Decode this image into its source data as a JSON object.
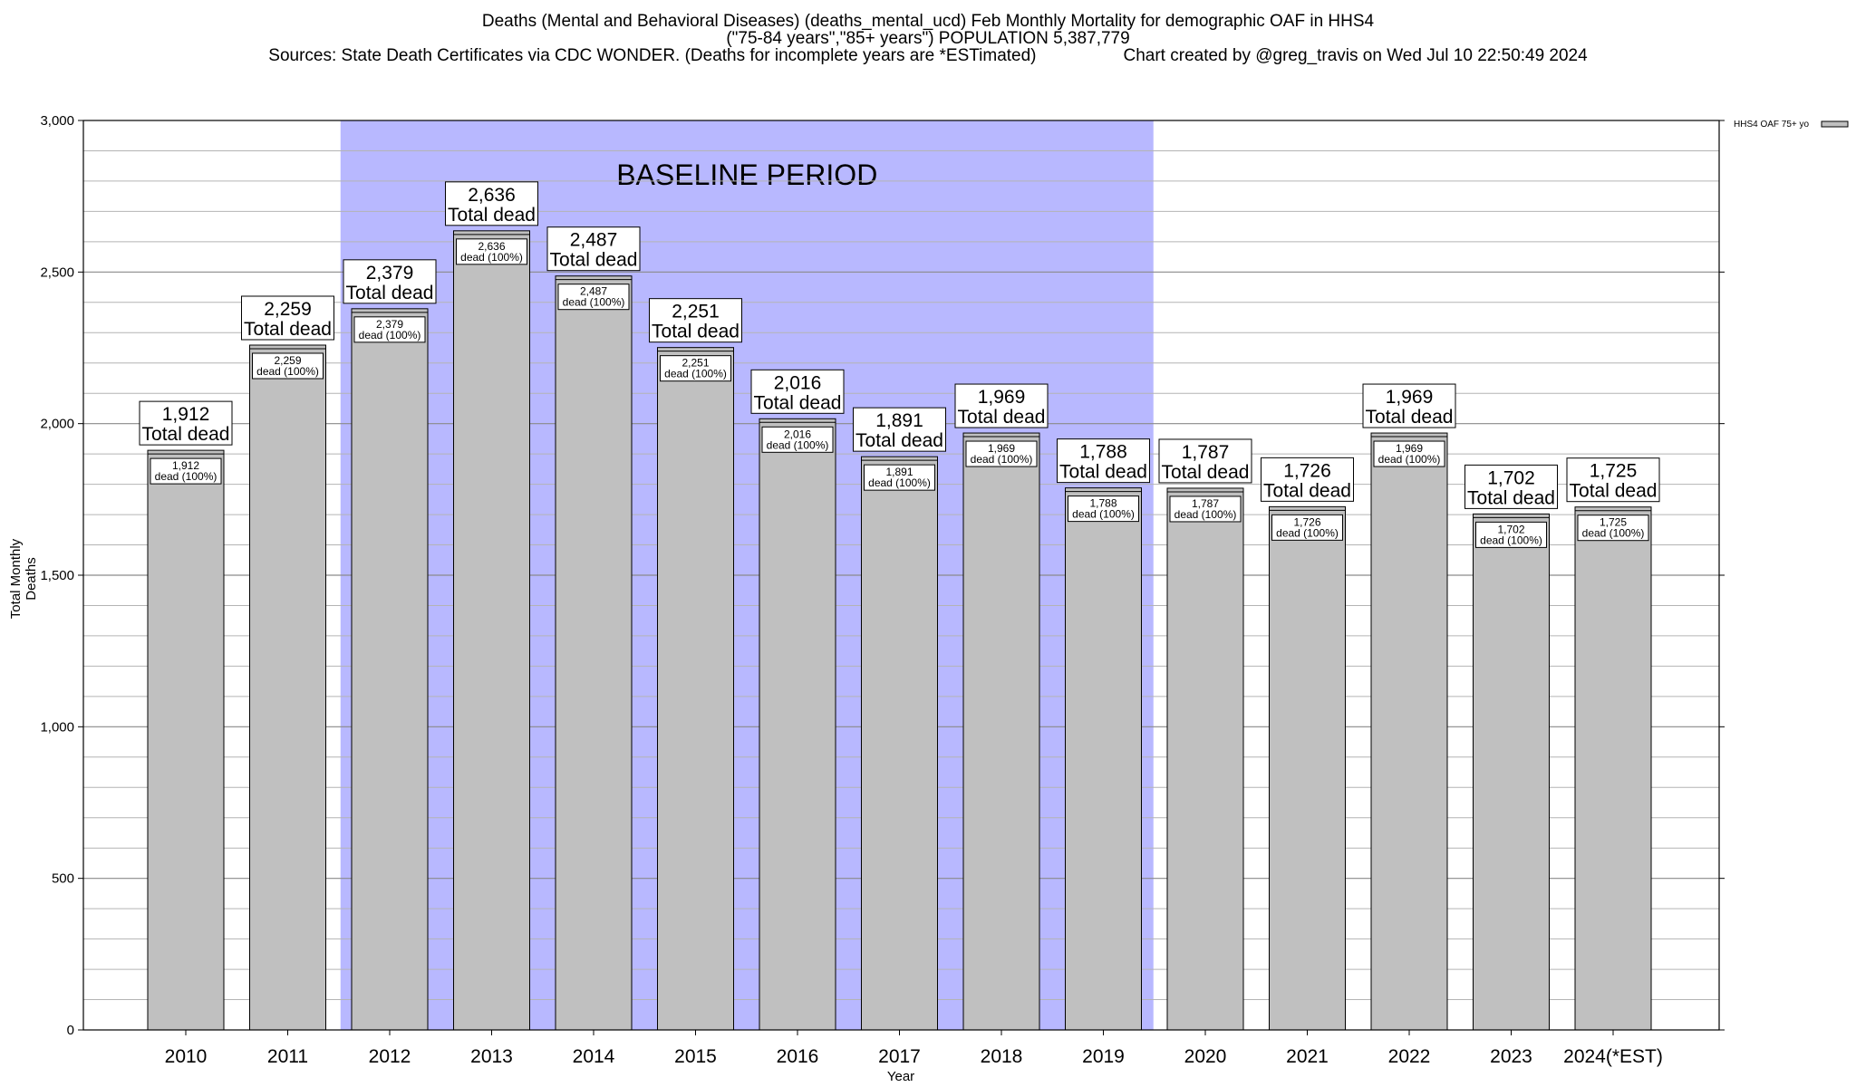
{
  "title": {
    "line1": "Deaths (Mental and Behavioral Diseases) (deaths_mental_ucd) Feb Monthly Mortality for demographic OAF in HHS4",
    "line2": "(\"75-84 years\",\"85+ years\") POPULATION 5,387,779",
    "sources": "Sources: State Death Certificates via CDC WONDER. (Deaths for incomplete years are *ESTimated)",
    "credit": "Chart created by @greg_travis on Wed Jul 10 22:50:49 2024"
  },
  "chart_data": {
    "type": "bar",
    "xlabel": "Year",
    "ylabel": "Total Monthly Deaths",
    "ylim": [
      0,
      3000
    ],
    "yticks": [
      0,
      500,
      1000,
      1500,
      2000,
      2500,
      3000
    ],
    "ytick_labels": [
      "0",
      "500",
      "1,000",
      "1,500",
      "2,000",
      "2,500",
      "3,000"
    ],
    "minor_grid_step": 100,
    "grid": true,
    "categories": [
      "2010",
      "2011",
      "2012",
      "2013",
      "2014",
      "2015",
      "2016",
      "2017",
      "2018",
      "2019",
      "2020",
      "2021",
      "2022",
      "2023",
      "2024(*EST)"
    ],
    "series": [
      {
        "name": "HHS4 OAF 75+ yo",
        "color": "#c0c0c0",
        "values": [
          1912,
          2259,
          2379,
          2636,
          2487,
          2251,
          2016,
          1891,
          1969,
          1788,
          1787,
          1726,
          1969,
          1702,
          1725
        ]
      }
    ],
    "value_labels": [
      "1,912",
      "2,259",
      "2,379",
      "2,636",
      "2,487",
      "2,251",
      "2,016",
      "1,891",
      "1,969",
      "1,788",
      "1,787",
      "1,726",
      "1,969",
      "1,702",
      "1,725"
    ],
    "total_label": "Total dead",
    "inner_label": "dead (100%)",
    "baseline": {
      "label": "BASELINE PERIOD",
      "start": "2012",
      "end": "2019",
      "color": "#b8b8ff"
    },
    "legend": {
      "placement": "top-right",
      "entries": [
        "HHS4 OAF 75+ yo"
      ]
    }
  }
}
